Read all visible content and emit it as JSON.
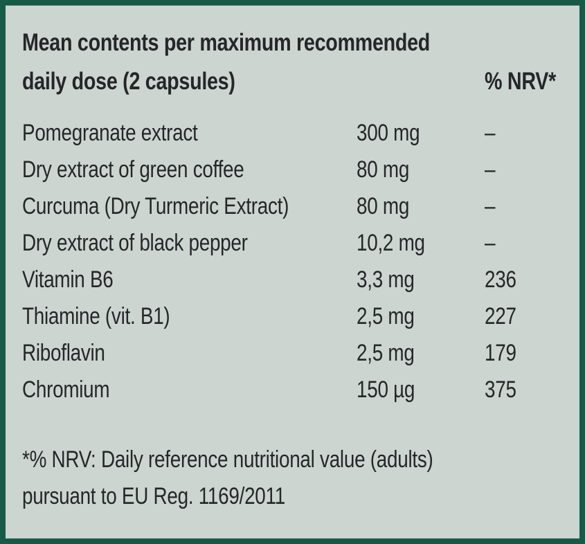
{
  "panel": {
    "background_color": "#ccd5d0",
    "border_color": "#175a48",
    "text_color": "#26262a"
  },
  "header": {
    "title_line1": "Mean contents per maximum recommended",
    "title_line2": "daily dose (2 capsules)",
    "nrv_column_label": "% NRV*"
  },
  "rows": [
    {
      "name": "Pomegranate extract",
      "amount": "300 mg",
      "nrv": "–"
    },
    {
      "name": "Dry extract of green coffee",
      "amount": "80 mg",
      "nrv": "–"
    },
    {
      "name": "Curcuma (Dry Turmeric Extract)",
      "amount": "80 mg",
      "nrv": "–"
    },
    {
      "name": "Dry extract of black pepper",
      "amount": "10,2 mg",
      "nrv": "–"
    },
    {
      "name": "Vitamin B6",
      "amount": "3,3 mg",
      "nrv": "236"
    },
    {
      "name": "Thiamine (vit. B1)",
      "amount": "2,5 mg",
      "nrv": "227"
    },
    {
      "name": "Riboflavin",
      "amount": "2,5 mg",
      "nrv": "179"
    },
    {
      "name": "Chromium",
      "amount": "150 µg",
      "nrv": "375"
    }
  ],
  "footnote": {
    "line1": "*% NRV: Daily reference nutritional value (adults)",
    "line2": "pursuant to EU Reg. 1169/2011"
  }
}
